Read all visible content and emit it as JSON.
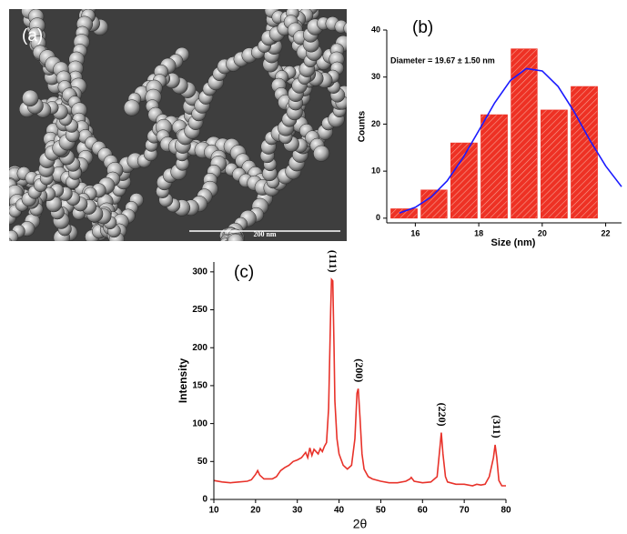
{
  "image": {
    "label": "(a)",
    "scale_bar": "200 nm"
  },
  "chart_data": [
    {
      "type": "histogram",
      "label": "(b)",
      "annotation": "Diameter = 19.67 ± 1.50 nm",
      "x_label": "Size (nm)",
      "y_label": "Counts",
      "color": "#ee3124",
      "bins": [
        15.17,
        16.12,
        17.06,
        18.01,
        18.96,
        19.9,
        20.85,
        21.8
      ],
      "values": [
        2,
        6,
        16,
        22,
        36,
        23,
        28
      ],
      "fit": {
        "color": "#1a1aff",
        "x": [
          15.5,
          16,
          16.5,
          17,
          17.5,
          18,
          18.5,
          19,
          19.5,
          20,
          20.5,
          21,
          21.5,
          22,
          22.5
        ],
        "values": [
          1.1,
          2.3,
          4.5,
          7.9,
          12.8,
          18.6,
          24.5,
          29.3,
          31.8,
          31.3,
          28.0,
          22.7,
          16.6,
          11.1,
          6.7
        ]
      },
      "xlim": [
        15.1,
        22.5
      ],
      "ylim": [
        -1,
        40
      ],
      "xticks": [
        16,
        18,
        20,
        22
      ],
      "yticks": [
        0,
        10,
        20,
        30,
        40
      ]
    },
    {
      "type": "line",
      "label": "(c)",
      "x_label": "2θ",
      "y_label": "Intensity",
      "x": [
        10,
        12,
        14,
        16,
        18,
        19,
        20,
        20.5,
        21,
        22,
        24,
        25,
        26,
        27,
        28,
        29,
        30,
        31,
        32,
        32.5,
        33,
        33.5,
        34,
        35,
        35.5,
        36,
        36.5,
        37,
        37.5,
        38,
        38.2,
        38.5,
        38.8,
        39,
        39.5,
        40,
        41,
        42,
        43,
        43.8,
        44.3,
        44.6,
        45,
        45.5,
        46,
        47,
        48,
        50,
        52,
        54,
        56,
        57,
        57.3,
        58,
        60,
        62,
        63.5,
        64.2,
        64.5,
        64.9,
        65.5,
        66,
        68,
        70,
        72,
        73,
        74,
        75,
        76,
        77,
        77.4,
        77.8,
        78.3,
        79,
        80
      ],
      "series": [
        {
          "color": "#e8322a",
          "values": [
            25,
            23,
            22,
            23,
            24,
            26,
            33,
            38,
            32,
            27,
            27,
            30,
            38,
            42,
            45,
            50,
            52,
            55,
            62,
            55,
            68,
            58,
            66,
            60,
            67,
            63,
            70,
            75,
            120,
            250,
            290,
            288,
            200,
            130,
            80,
            60,
            45,
            40,
            45,
            80,
            140,
            146,
            110,
            60,
            40,
            30,
            27,
            24,
            22,
            22,
            24,
            27,
            29,
            24,
            22,
            23,
            30,
            70,
            88,
            60,
            30,
            23,
            20,
            20,
            18,
            20,
            19,
            20,
            30,
            55,
            72,
            55,
            25,
            18,
            18
          ]
        }
      ],
      "annotations": [
        {
          "text": "(111)",
          "x": 38.3
        },
        {
          "text": "(200)",
          "x": 44.6
        },
        {
          "text": "(220)",
          "x": 64.5
        },
        {
          "text": "(311)",
          "x": 77.5
        }
      ],
      "xlim": [
        10,
        80
      ],
      "ylim": [
        0,
        313
      ],
      "xticks": [
        10,
        20,
        30,
        40,
        50,
        60,
        70,
        80
      ],
      "yticks": [
        0,
        50,
        100,
        150,
        200,
        250,
        300
      ]
    }
  ]
}
